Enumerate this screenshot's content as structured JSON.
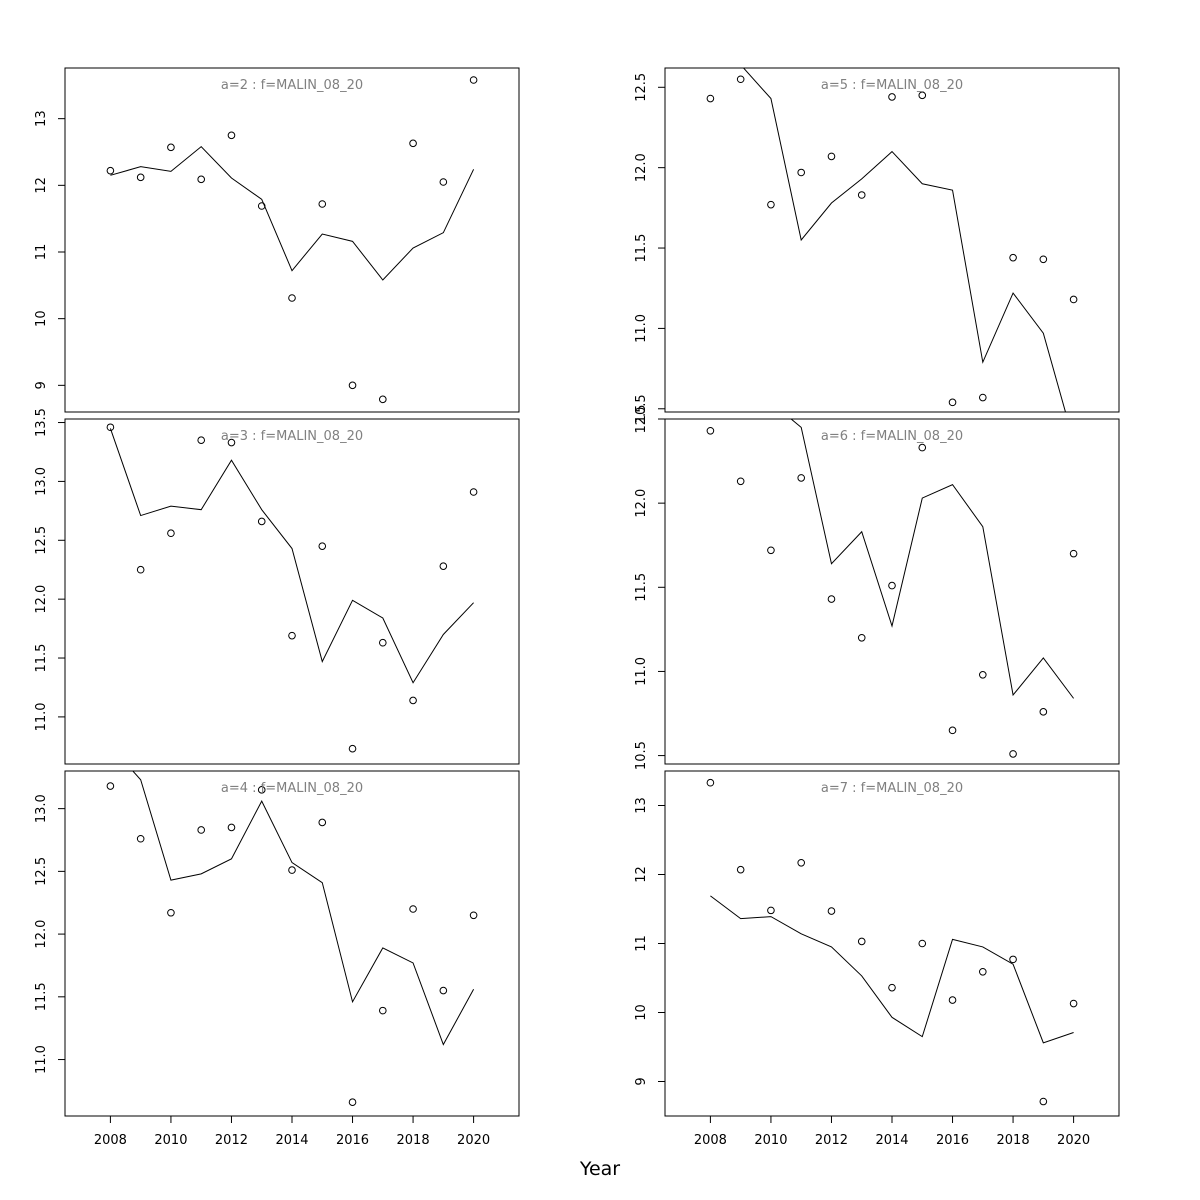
{
  "figure": {
    "xlabel": "Year"
  },
  "chart_data": [
    {
      "type": "line",
      "title": "a=2  :  f=MALIN_08_20",
      "x": [
        2008,
        2009,
        2010,
        2011,
        2012,
        2013,
        2014,
        2015,
        2016,
        2017,
        2018,
        2019,
        2020
      ],
      "series": [
        {
          "style": "points",
          "values": [
            12.22,
            12.12,
            12.57,
            12.09,
            12.75,
            11.69,
            10.31,
            11.72,
            9.0,
            8.79,
            12.63,
            12.05,
            13.58
          ]
        },
        {
          "style": "line",
          "values": [
            12.15,
            12.28,
            12.21,
            12.58,
            12.11,
            11.79,
            10.72,
            11.27,
            11.16,
            10.58,
            11.06,
            11.29,
            12.24
          ]
        }
      ],
      "xlim": [
        2006.5,
        2021.5
      ],
      "ylim": [
        8.6,
        13.76
      ],
      "yticks": [
        9,
        10,
        11,
        12,
        13
      ],
      "xticks_shown": false
    },
    {
      "type": "line",
      "title": "a=5  :  f=MALIN_08_20",
      "x": [
        2008,
        2009,
        2010,
        2011,
        2012,
        2013,
        2014,
        2015,
        2016,
        2017,
        2018,
        2019,
        2020
      ],
      "series": [
        {
          "style": "points",
          "values": [
            12.43,
            12.55,
            11.77,
            11.97,
            12.07,
            11.83,
            12.44,
            12.45,
            10.54,
            10.57,
            11.44,
            11.43,
            11.18
          ]
        },
        {
          "style": "line",
          "values": [
            12.8,
            12.64,
            12.43,
            11.55,
            11.78,
            11.93,
            12.1,
            11.9,
            11.86,
            10.79,
            11.22,
            10.97,
            10.3
          ]
        }
      ],
      "xlim": [
        2006.5,
        2021.5
      ],
      "ylim": [
        10.48,
        12.62
      ],
      "yticks": [
        10.5,
        11.0,
        11.5,
        12.0,
        12.5
      ],
      "xticks_shown": false
    },
    {
      "type": "line",
      "title": "a=3  :  f=MALIN_08_20",
      "x": [
        2008,
        2009,
        2010,
        2011,
        2012,
        2013,
        2014,
        2015,
        2016,
        2017,
        2018,
        2019,
        2020
      ],
      "series": [
        {
          "style": "points",
          "values": [
            13.46,
            12.25,
            12.56,
            13.35,
            13.33,
            12.66,
            11.69,
            12.45,
            10.73,
            11.63,
            11.14,
            12.28,
            12.91
          ]
        },
        {
          "style": "line",
          "values": [
            13.45,
            12.71,
            12.79,
            12.76,
            13.18,
            12.76,
            12.43,
            11.47,
            11.99,
            11.84,
            11.29,
            11.7,
            11.97
          ]
        }
      ],
      "xlim": [
        2006.5,
        2021.5
      ],
      "ylim": [
        10.6,
        13.53
      ],
      "yticks": [
        11.0,
        11.5,
        12.0,
        12.5,
        13.0,
        13.5
      ],
      "xticks_shown": false
    },
    {
      "type": "line",
      "title": "a=6  :  f=MALIN_08_20",
      "x": [
        2008,
        2009,
        2010,
        2011,
        2012,
        2013,
        2014,
        2015,
        2016,
        2017,
        2018,
        2019,
        2020
      ],
      "series": [
        {
          "style": "points",
          "values": [
            12.43,
            12.13,
            11.72,
            12.15,
            11.43,
            11.2,
            11.51,
            12.33,
            10.65,
            10.98,
            10.51,
            10.76,
            11.7
          ]
        },
        {
          "style": "line",
          "values": [
            12.9,
            12.75,
            12.6,
            12.45,
            11.64,
            11.83,
            11.27,
            12.03,
            12.11,
            11.86,
            10.86,
            11.08,
            10.84
          ]
        }
      ],
      "xlim": [
        2006.5,
        2021.5
      ],
      "ylim": [
        10.45,
        12.5
      ],
      "yticks": [
        10.5,
        11.0,
        11.5,
        12.0,
        12.5
      ],
      "xticks_shown": false
    },
    {
      "type": "line",
      "title": "a=4  :  f=MALIN_08_20",
      "x": [
        2008,
        2009,
        2010,
        2011,
        2012,
        2013,
        2014,
        2015,
        2016,
        2017,
        2018,
        2019,
        2020
      ],
      "series": [
        {
          "style": "points",
          "values": [
            13.18,
            12.76,
            12.17,
            12.83,
            12.85,
            13.15,
            12.51,
            12.89,
            10.66,
            11.39,
            12.2,
            11.55,
            12.15
          ]
        },
        {
          "style": "line",
          "values": [
            13.5,
            13.23,
            12.43,
            12.48,
            12.6,
            13.06,
            12.57,
            12.41,
            11.46,
            11.89,
            11.77,
            11.12,
            11.56
          ]
        }
      ],
      "xlim": [
        2006.5,
        2021.5
      ],
      "ylim": [
        10.55,
        13.3
      ],
      "yticks": [
        11.0,
        11.5,
        12.0,
        12.5,
        13.0
      ],
      "xticks": [
        2008,
        2010,
        2012,
        2014,
        2016,
        2018,
        2020
      ],
      "xticks_shown": true
    },
    {
      "type": "line",
      "title": "a=7  :  f=MALIN_08_20",
      "x": [
        2008,
        2009,
        2010,
        2011,
        2012,
        2013,
        2014,
        2015,
        2016,
        2017,
        2018,
        2019,
        2020
      ],
      "series": [
        {
          "style": "points",
          "values": [
            13.33,
            12.07,
            11.48,
            12.17,
            11.47,
            11.03,
            10.36,
            11.0,
            10.18,
            10.59,
            10.77,
            8.71,
            10.13
          ]
        },
        {
          "style": "line",
          "values": [
            11.69,
            11.36,
            11.39,
            11.14,
            10.95,
            10.53,
            9.93,
            9.65,
            11.06,
            10.95,
            10.7,
            9.56,
            9.71
          ]
        }
      ],
      "xlim": [
        2006.5,
        2021.5
      ],
      "ylim": [
        8.5,
        13.5
      ],
      "yticks": [
        9,
        10,
        11,
        12,
        13
      ],
      "xticks": [
        2008,
        2010,
        2012,
        2014,
        2016,
        2018,
        2020
      ],
      "xticks_shown": true
    }
  ]
}
